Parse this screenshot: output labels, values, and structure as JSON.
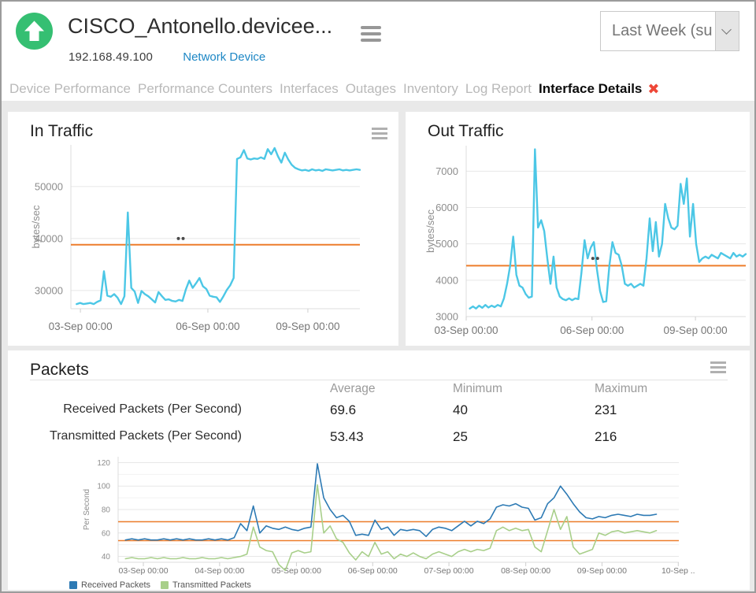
{
  "header": {
    "title": "CISCO_Antonello.devicee...",
    "ip": "192.168.49.100",
    "device_type": "Network Device",
    "period_value": "Last Week (su"
  },
  "tabs": {
    "inactive": [
      "Device Performance",
      "Performance Counters",
      "Interfaces",
      "Outages",
      "Inventory",
      "Log Report"
    ],
    "active": "Interface Details",
    "close_icon": "✖"
  },
  "colors": {
    "traffic_cyan": "#4cc7e6",
    "threshold_orange": "#ed7d2b",
    "received_blue": "#2d7ab4",
    "transmitted_green": "#a8cf8a",
    "status_green": "#35bf72",
    "link_blue": "#1d87c5",
    "close_red": "#ee4737"
  },
  "panels": {
    "in_traffic": {
      "title": "In Traffic"
    },
    "out_traffic": {
      "title": "Out Traffic"
    },
    "packets": {
      "title": "Packets",
      "table": {
        "headers": {
          "average": "Average",
          "minimum": "Minimum",
          "maximum": "Maximum"
        },
        "rows": [
          {
            "label": "Received Packets (Per Second)",
            "average": "69.6",
            "minimum": "40",
            "maximum": "231"
          },
          {
            "label": "Transmitted Packets (Per Second)",
            "average": "53.43",
            "minimum": "25",
            "maximum": "216"
          }
        ]
      }
    }
  },
  "chart_data": [
    {
      "type": "line",
      "title": "In Traffic",
      "ylabel": "bytes/sec",
      "y_range": [
        26500,
        58000
      ],
      "y_ticks": [
        {
          "label": "50000",
          "value": 50000
        },
        {
          "label": "40000",
          "value": 40000
        },
        {
          "label": "30000",
          "value": 30000
        }
      ],
      "x_ticks": [
        {
          "label": "03-Sep 00:00",
          "f": 0.033
        },
        {
          "label": "06-Sep 00:00",
          "f": 0.474
        },
        {
          "label": "09-Sep 00:00",
          "f": 0.82
        }
      ],
      "thresholds": [
        38800
      ],
      "gap_dots": {
        "f": 0.372,
        "value": 40000
      },
      "line_f": [
        0.02,
        1.0
      ],
      "grid": true,
      "legend_position": "none",
      "series": [
        {
          "name": "In Traffic",
          "color": "#4cc7e6",
          "values": [
            27400,
            27600,
            27400,
            27500,
            27600,
            27400,
            27800,
            28100,
            33700,
            29000,
            28800,
            29300,
            28600,
            27400,
            28900,
            45000,
            30500,
            29800,
            27600,
            29900,
            29300,
            28900,
            28300,
            27700,
            29700,
            28900,
            28200,
            28300,
            28000,
            27900,
            28200,
            28000,
            30200,
            31900,
            30500,
            31400,
            32400,
            30800,
            30300,
            29000,
            28800,
            28700,
            27800,
            28900,
            30100,
            31000,
            32400,
            55300,
            55600,
            57000,
            55400,
            55200,
            55400,
            55300,
            55600,
            55300,
            57200,
            56200,
            57400,
            55800,
            54600,
            56500,
            55200,
            54200,
            53600,
            53300,
            53100,
            53200,
            53000,
            53300,
            53100,
            53200,
            53000,
            53300,
            53200,
            53100,
            53200,
            53300,
            53100,
            53200,
            53100,
            53200,
            53300,
            53200
          ]
        }
      ]
    },
    {
      "type": "line",
      "title": "Out Traffic",
      "ylabel": "bytes/sec",
      "y_range": [
        3000,
        7700
      ],
      "y_ticks": [
        {
          "label": "7000",
          "value": 7000
        },
        {
          "label": "6000",
          "value": 6000
        },
        {
          "label": "5000",
          "value": 5000
        },
        {
          "label": "4000",
          "value": 4000
        },
        {
          "label": "3000",
          "value": 3000
        }
      ],
      "x_ticks": [
        {
          "label": "03-Sep 00:00",
          "f": 0.0
        },
        {
          "label": "06-Sep 00:00",
          "f": 0.45
        },
        {
          "label": "09-Sep 00:00",
          "f": 0.82
        }
      ],
      "thresholds": [
        4400
      ],
      "gap_dots": {
        "f": 0.453,
        "value": 4600
      },
      "line_f": [
        0.013,
        1.0
      ],
      "grid": true,
      "legend_position": "none",
      "series": [
        {
          "name": "Out Traffic",
          "color": "#4cc7e6",
          "values": [
            3220,
            3280,
            3220,
            3300,
            3240,
            3320,
            3250,
            3300,
            3260,
            3320,
            3280,
            3500,
            3900,
            4400,
            5200,
            4150,
            3850,
            3800,
            3620,
            3520,
            3550,
            7600,
            5450,
            5650,
            5350,
            4600,
            3900,
            4650,
            3800,
            3550,
            3480,
            3450,
            3500,
            3450,
            3500,
            3480,
            4200,
            5100,
            4600,
            4900,
            5050,
            4300,
            3700,
            3400,
            3420,
            4400,
            5050,
            4750,
            4700,
            4400,
            3900,
            3850,
            3900,
            3800,
            3850,
            3900,
            3850,
            4600,
            5700,
            4800,
            5600,
            4650,
            5000,
            6100,
            5700,
            5450,
            5400,
            5500,
            6650,
            6100,
            6800,
            5200,
            6100,
            5000,
            4500,
            4600,
            4650,
            4600,
            4700,
            4650,
            4600,
            4750,
            4700,
            4650,
            4600,
            4750,
            4650,
            4700,
            4650,
            4720
          ]
        }
      ]
    },
    {
      "type": "line",
      "title": "Packets",
      "ylabel": "Per Second",
      "y_range": [
        35,
        125
      ],
      "y_ticks": [
        {
          "label": "120",
          "value": 120
        },
        {
          "label": "100",
          "value": 100
        },
        {
          "label": "80",
          "value": 80
        },
        {
          "label": "60",
          "value": 60
        },
        {
          "label": "40",
          "value": 40
        }
      ],
      "minor_grid": [
        50,
        70,
        90,
        110
      ],
      "x_ticks": [
        {
          "label": "03-Sep 00:00",
          "f": 0.045
        },
        {
          "label": "04-Sep 00:00",
          "f": 0.181
        },
        {
          "label": "05-Sep 00:00",
          "f": 0.318
        },
        {
          "label": "06-Sep 00:00",
          "f": 0.454
        },
        {
          "label": "07-Sep 00:00",
          "f": 0.59
        },
        {
          "label": "08-Sep 00:00",
          "f": 0.727
        },
        {
          "label": "09-Sep 00:00",
          "f": 0.863
        },
        {
          "label": "10-Sep ..",
          "f": 0.999
        }
      ],
      "thresholds": [
        69.6,
        53.43
      ],
      "line_f": [
        0.013,
        0.96
      ],
      "grid": true,
      "legend_position": "bottom-left",
      "series": [
        {
          "name": "Received Packets",
          "color": "#2d7ab4",
          "values": [
            54,
            55,
            54,
            55,
            54,
            54,
            55,
            54,
            55,
            54,
            55,
            54,
            54,
            55,
            54,
            55,
            54,
            56,
            68,
            62,
            83,
            60,
            66,
            64,
            63,
            65,
            63,
            62,
            64,
            65,
            119,
            90,
            80,
            73,
            75,
            70,
            58,
            59,
            58,
            71,
            63,
            65,
            58,
            63,
            62,
            63,
            62,
            57,
            63,
            65,
            64,
            62,
            66,
            70,
            66,
            70,
            68,
            72,
            82,
            84,
            83,
            85,
            82,
            81,
            71,
            73,
            85,
            90,
            100,
            93,
            85,
            78,
            73,
            72,
            74,
            73,
            75,
            76,
            75,
            74,
            76,
            75,
            75,
            76
          ]
        },
        {
          "name": "Transmitted Packets",
          "color": "#a8cf8a",
          "values": [
            38,
            39,
            38,
            38,
            39,
            38,
            39,
            38,
            38,
            39,
            38,
            38,
            39,
            38,
            38,
            39,
            38,
            39,
            40,
            42,
            65,
            48,
            45,
            44,
            33,
            28,
            43,
            45,
            43,
            44,
            101,
            60,
            66,
            55,
            52,
            43,
            37,
            44,
            40,
            52,
            42,
            44,
            38,
            42,
            40,
            43,
            40,
            38,
            42,
            44,
            42,
            40,
            44,
            46,
            44,
            46,
            45,
            47,
            62,
            65,
            62,
            64,
            62,
            63,
            48,
            44,
            62,
            80,
            63,
            74,
            48,
            42,
            44,
            46,
            60,
            58,
            61,
            62,
            60,
            61,
            62,
            61,
            60,
            62
          ]
        }
      ]
    }
  ]
}
